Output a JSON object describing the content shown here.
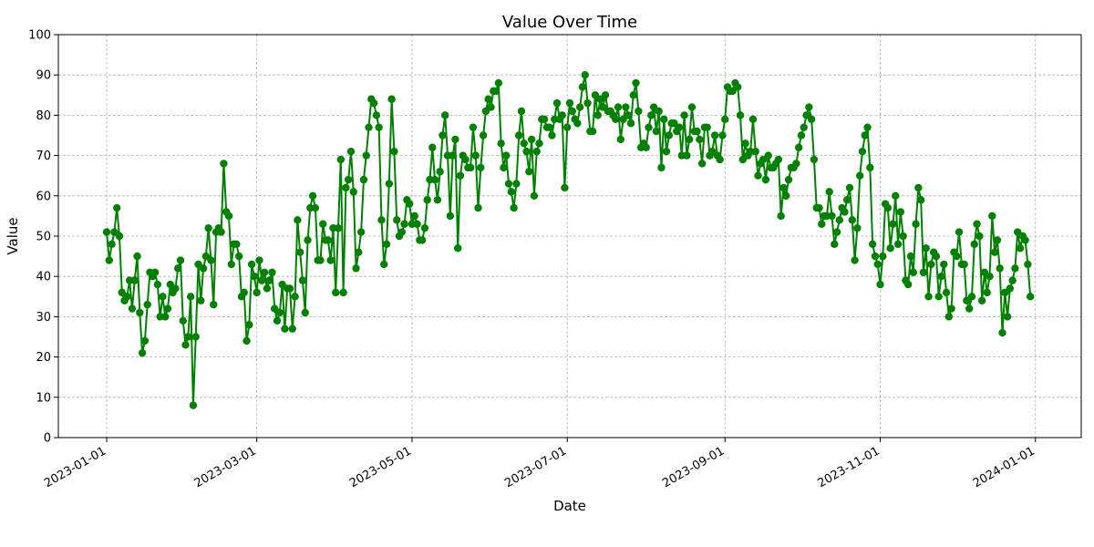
{
  "chart_data": {
    "type": "line",
    "title": "Value Over Time",
    "xlabel": "Date",
    "ylabel": "Value",
    "color": "#008000",
    "grid": true,
    "ylim": [
      0,
      100
    ],
    "xlim": [
      "2022-12-13",
      "2024-01-19"
    ],
    "y_ticks": [
      0,
      10,
      20,
      30,
      40,
      50,
      60,
      70,
      80,
      90,
      100
    ],
    "x_ticks": [
      "2023-01-01",
      "2023-03-01",
      "2023-05-01",
      "2023-07-01",
      "2023-09-01",
      "2023-11-01",
      "2024-01-01"
    ],
    "x_start": "2023-01-01",
    "values": [
      51,
      44,
      48,
      51,
      57,
      50,
      36,
      34,
      35,
      39,
      32,
      39,
      45,
      31,
      21,
      24,
      33,
      41,
      40,
      41,
      38,
      30,
      35,
      30,
      32,
      38,
      36,
      37,
      42,
      44,
      29,
      23,
      25,
      35,
      8,
      25,
      43,
      34,
      42,
      45,
      52,
      44,
      33,
      51,
      52,
      51,
      68,
      56,
      55,
      43,
      48,
      48,
      45,
      35,
      36,
      24,
      28,
      43,
      40,
      36,
      44,
      39,
      41,
      37,
      39,
      41,
      32,
      29,
      31,
      38,
      27,
      37,
      37,
      27,
      35,
      54,
      46,
      39,
      31,
      49,
      57,
      60,
      57,
      44,
      44,
      53,
      49,
      49,
      44,
      52,
      36,
      52,
      69,
      36,
      62,
      64,
      71,
      61,
      42,
      46,
      51,
      64,
      70,
      77,
      84,
      83,
      80,
      77,
      54,
      43,
      48,
      63,
      84,
      71,
      54,
      50,
      51,
      53,
      59,
      58,
      53,
      55,
      53,
      49,
      49,
      52,
      59,
      64,
      72,
      64,
      59,
      66,
      75,
      80,
      70,
      55,
      70,
      74,
      47,
      65,
      70,
      69,
      67,
      67,
      77,
      70,
      57,
      67,
      75,
      81,
      84,
      82,
      86,
      86,
      88,
      73,
      67,
      70,
      63,
      61,
      57,
      63,
      75,
      81,
      73,
      71,
      66,
      74,
      60,
      71,
      73,
      79,
      79,
      77,
      77,
      75,
      79,
      83,
      79,
      80,
      62,
      77,
      83,
      81,
      79,
      78,
      82,
      87,
      90,
      83,
      76,
      76,
      85,
      80,
      84,
      82,
      85,
      81,
      81,
      80,
      79,
      82,
      74,
      79,
      82,
      80,
      78,
      85,
      88,
      81,
      72,
      73,
      72,
      77,
      80,
      82,
      76,
      81,
      67,
      79,
      71,
      75,
      78,
      78,
      76,
      77,
      70,
      80,
      70,
      74,
      82,
      76,
      76,
      74,
      68,
      77,
      77,
      70,
      71,
      75,
      70,
      69,
      75,
      79,
      87,
      86,
      86,
      88,
      87,
      80,
      69,
      73,
      70,
      71,
      79,
      71,
      65,
      68,
      69,
      64,
      70,
      67,
      67,
      68,
      69,
      55,
      62,
      60,
      64,
      67,
      67,
      68,
      72,
      75,
      77,
      80,
      82,
      79,
      69,
      57,
      57,
      53,
      55,
      55,
      61,
      55,
      48,
      51,
      54,
      57,
      56,
      59,
      62,
      54,
      44,
      52,
      65,
      71,
      75,
      77,
      67,
      48,
      45,
      43,
      38,
      45,
      58,
      57,
      47,
      53,
      60,
      48,
      56,
      50,
      39,
      38,
      45,
      41,
      53,
      62,
      59,
      41,
      47,
      35,
      43,
      46,
      45,
      35,
      40,
      43,
      36,
      30,
      32,
      46,
      45,
      51,
      43,
      43,
      34,
      32,
      35,
      48,
      53,
      50,
      34,
      41,
      36,
      40,
      55,
      46,
      49,
      42,
      26,
      36,
      30,
      37,
      39,
      42,
      51,
      47,
      50,
      49,
      43,
      35
    ]
  }
}
